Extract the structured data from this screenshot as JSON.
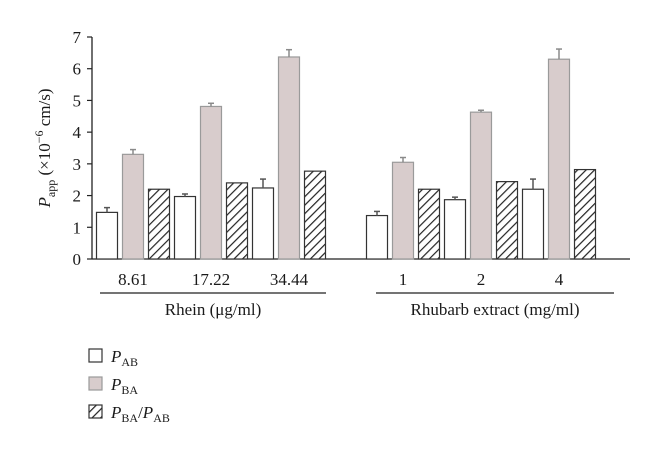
{
  "chart_data": {
    "type": "bar",
    "ylabel": {
      "symbol": "P",
      "subscript": "app",
      "rest_prefix": " (×10",
      "exponent": "−6",
      "rest_suffix": " cm/s)"
    },
    "ylim": [
      0,
      7
    ],
    "yticks": [
      "0",
      "1",
      "2",
      "3",
      "4",
      "5",
      "6",
      "7"
    ],
    "categories": [
      "8.61",
      "17.22",
      "34.44",
      "1",
      "2",
      "4"
    ],
    "groups": [
      {
        "label": "Rhein (μg/ml)",
        "categories": [
          "8.61",
          "17.22",
          "34.44"
        ]
      },
      {
        "label": "Rhubarb extract (mg/ml)",
        "categories": [
          "1",
          "2",
          "4"
        ]
      }
    ],
    "series": [
      {
        "legend_main": "P",
        "legend_sub": "AB",
        "legend_sep": "",
        "legend_main2": "",
        "legend_sub2": "",
        "fill": "#ffffff",
        "pattern": "none",
        "stroke": "#333333",
        "values": [
          1.47,
          1.97,
          2.24,
          1.37,
          1.87,
          2.2
        ],
        "errors": [
          0.15,
          0.08,
          0.28,
          0.13,
          0.08,
          0.32
        ]
      },
      {
        "legend_main": "P",
        "legend_sub": "BA",
        "legend_sep": "",
        "legend_main2": "",
        "legend_sub2": "",
        "fill": "#d8cccc",
        "pattern": "none",
        "stroke": "#9a9a9a",
        "values": [
          3.3,
          4.81,
          6.37,
          3.05,
          4.63,
          6.3
        ],
        "errors": [
          0.15,
          0.1,
          0.23,
          0.15,
          0.06,
          0.32
        ]
      },
      {
        "legend_main": "P",
        "legend_sub": "BA",
        "legend_sep": "/",
        "legend_main2": "P",
        "legend_sub2": "AB",
        "fill": "#ffffff",
        "pattern": "diagonal-hatch",
        "stroke": "#333333",
        "values": [
          2.2,
          2.4,
          2.77,
          2.2,
          2.44,
          2.82
        ],
        "errors": [
          0,
          0,
          0,
          0,
          0,
          0
        ]
      }
    ],
    "grid": false,
    "legend_position": "bottom-left"
  }
}
